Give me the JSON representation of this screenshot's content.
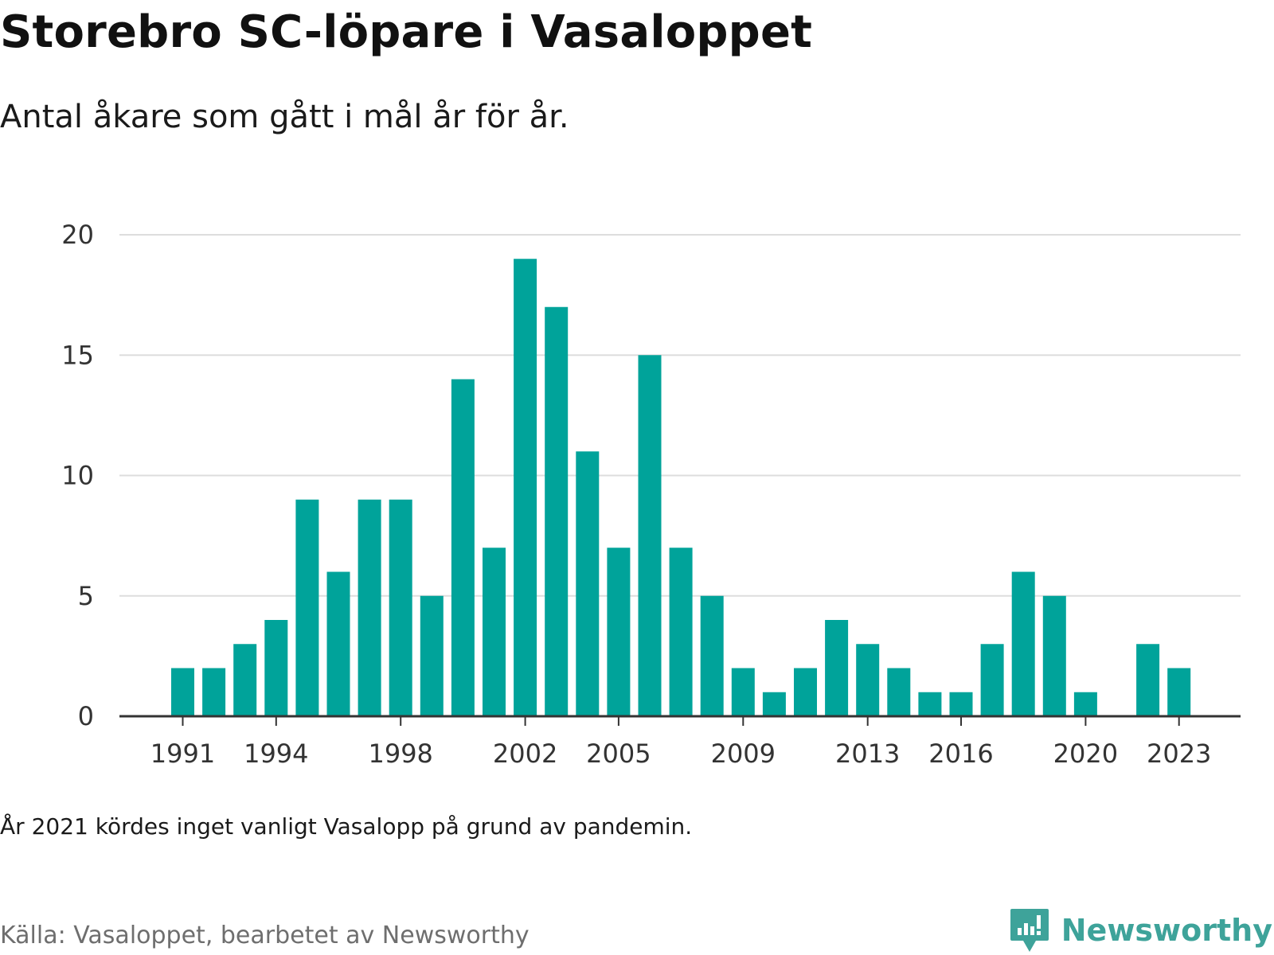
{
  "title": "Storebro SC-löpare i Vasaloppet",
  "subtitle": "Antal åkare som gått i mål år för år.",
  "note": "År 2021 kördes inget vanligt Vasalopp på grund av pandemin.",
  "source": "Källa: Vasaloppet, bearbetet av Newsworthy",
  "brand": {
    "name": "Newsworthy",
    "logo_icon": "newsworthy-bar-chart-speech-bubble-icon",
    "color": "#3ea39a"
  },
  "chart_data": {
    "type": "bar",
    "categories": [
      1991,
      1992,
      1993,
      1994,
      1995,
      1996,
      1997,
      1998,
      1999,
      2000,
      2001,
      2002,
      2003,
      2004,
      2005,
      2006,
      2007,
      2008,
      2009,
      2010,
      2011,
      2012,
      2013,
      2014,
      2015,
      2016,
      2017,
      2018,
      2019,
      2020,
      2021,
      2022,
      2023
    ],
    "values": [
      2,
      2,
      3,
      4,
      9,
      6,
      9,
      9,
      5,
      14,
      7,
      19,
      17,
      11,
      7,
      15,
      7,
      5,
      2,
      1,
      2,
      4,
      3,
      2,
      1,
      1,
      3,
      6,
      5,
      1,
      null,
      3,
      2
    ],
    "x_tick_labels": [
      "1991",
      "1994",
      "1998",
      "2002",
      "2005",
      "2009",
      "2013",
      "2016",
      "2020",
      "2023"
    ],
    "y_ticks": [
      0,
      5,
      10,
      15,
      20
    ],
    "ylim": [
      0,
      20
    ],
    "grid": true,
    "bar_color": "#00a39a",
    "grid_color": "#dddddd",
    "axis_color": "#333333"
  }
}
